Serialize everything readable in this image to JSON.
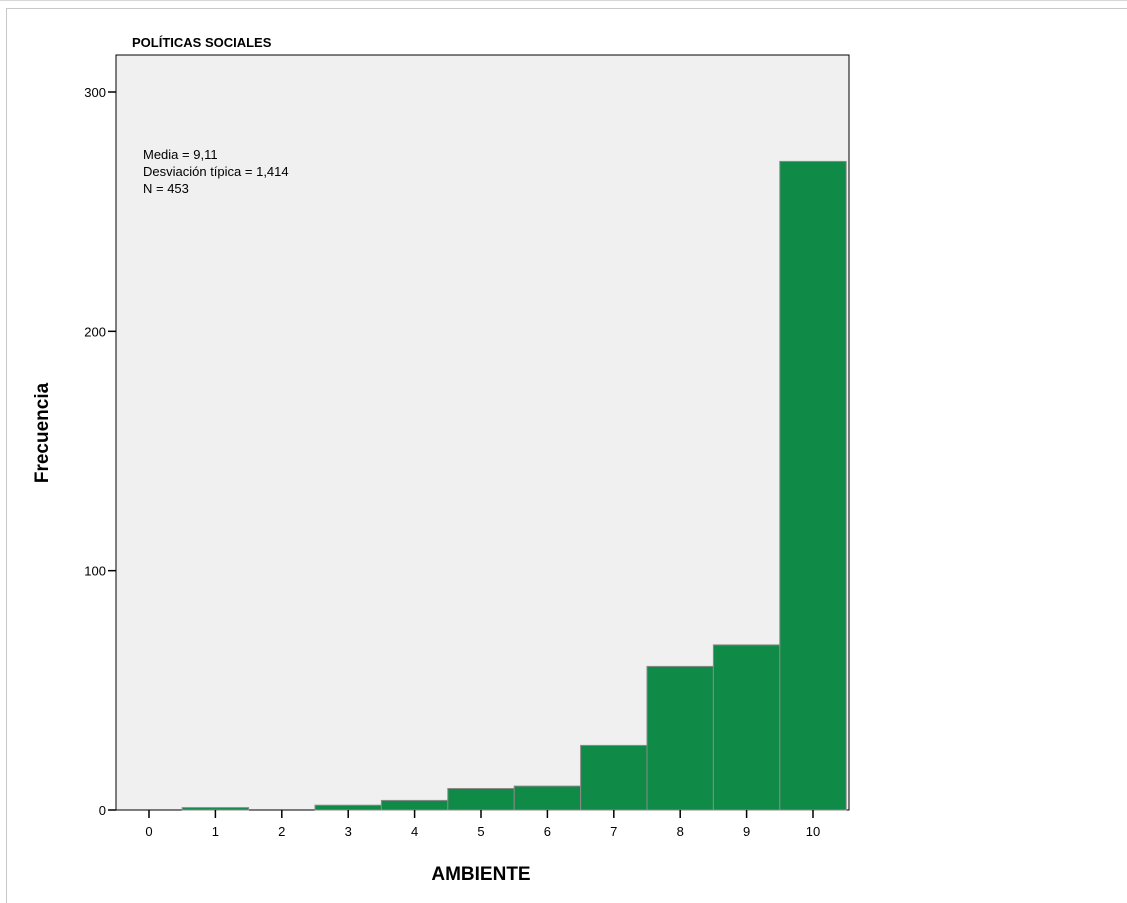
{
  "chart_data": {
    "type": "bar",
    "title": "POLÍTICAS SOCIALES",
    "xlabel": "AMBIENTE",
    "ylabel": "Frecuencia",
    "categories": [
      "0",
      "1",
      "2",
      "3",
      "4",
      "5",
      "6",
      "7",
      "8",
      "9",
      "10"
    ],
    "values": [
      0,
      1,
      0,
      2,
      4,
      9,
      10,
      27,
      60,
      69,
      271
    ],
    "y_ticks": [
      "0",
      "100",
      "200",
      "300"
    ],
    "ylim": [
      0,
      300
    ],
    "xlim": [
      -0.5,
      10.5
    ],
    "annotations": [
      "Media = 9,11",
      "Desviación típica = 1,414",
      "N = 453"
    ],
    "colors": {
      "bar_fill": "#108b47",
      "bar_edge": "#8a8a8a",
      "plot_background": "#f0f0f0",
      "axis": "#000000"
    },
    "grid": false
  }
}
